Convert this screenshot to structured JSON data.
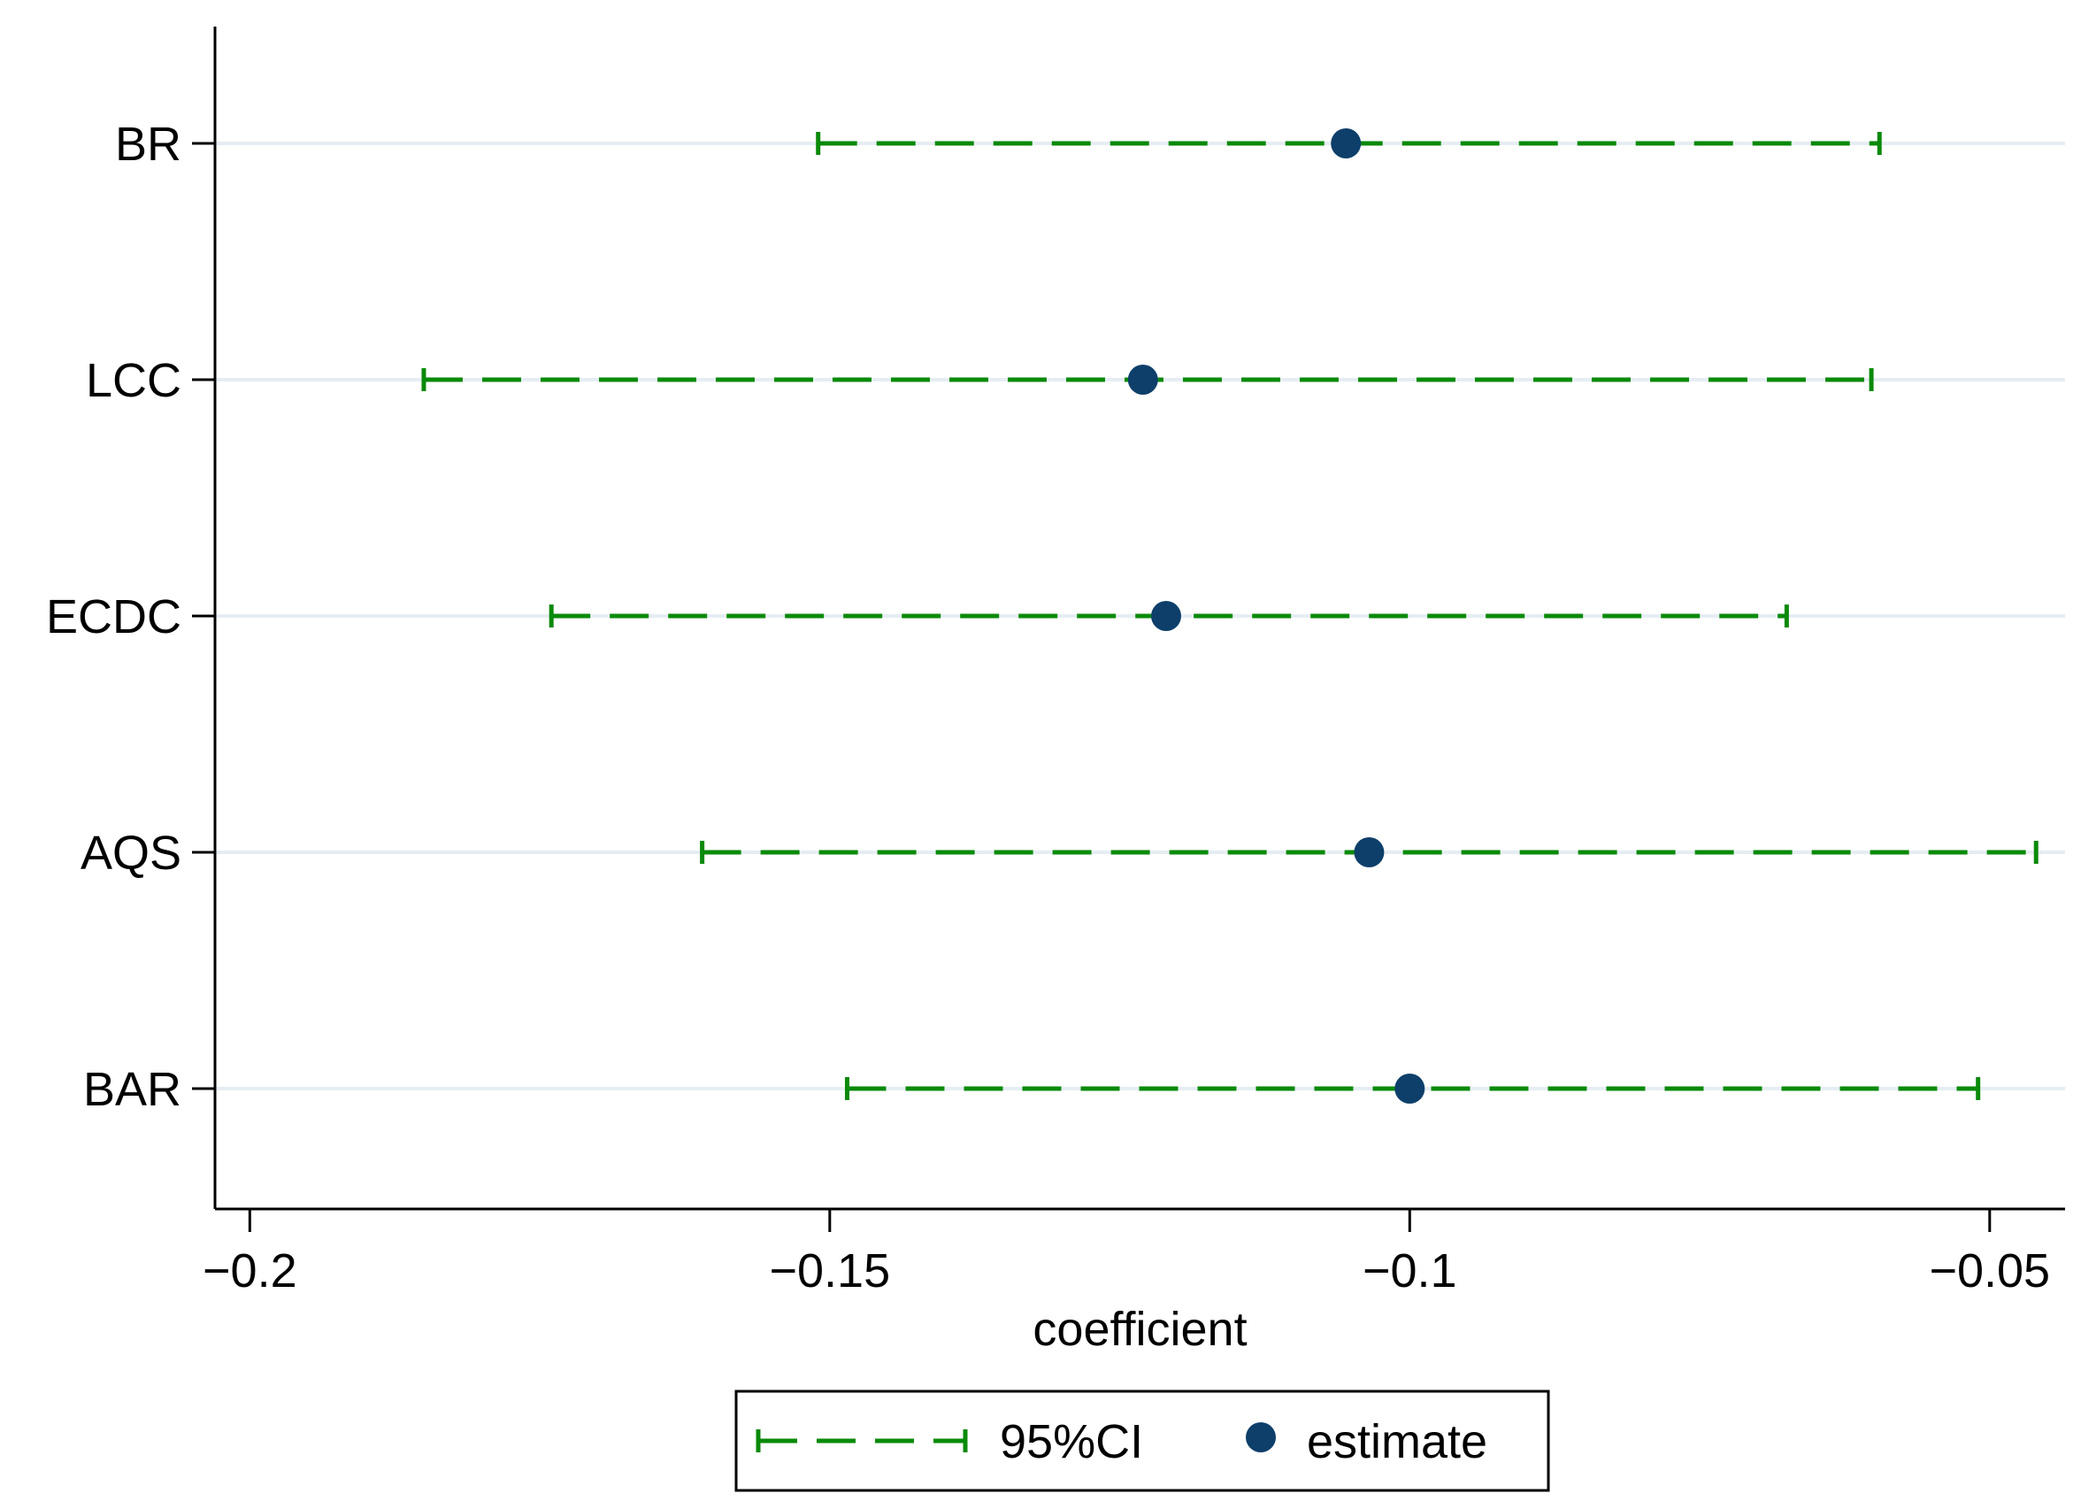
{
  "chart_data": {
    "type": "scatter",
    "subtype": "coefficient-plot",
    "title": "",
    "xlabel": "coefficient",
    "ylabel": "",
    "xlim": [
      -0.203,
      -0.0435
    ],
    "x_ticks": [
      -0.2,
      -0.15,
      -0.1,
      -0.05
    ],
    "x_tick_labels": [
      "−0.2",
      "−0.15",
      "−0.1",
      "−0.05"
    ],
    "categories": [
      "BR",
      "LCC",
      "ECDC",
      "AQS",
      "BAR"
    ],
    "series": [
      {
        "name": "estimate",
        "values": [
          -0.1055,
          -0.123,
          -0.121,
          -0.1035,
          -0.1
        ]
      },
      {
        "name": "95%CI",
        "lower": [
          -0.151,
          -0.185,
          -0.174,
          -0.161,
          -0.1485
        ],
        "upper": [
          -0.0595,
          -0.0602,
          -0.0675,
          -0.046,
          -0.051
        ]
      }
    ],
    "gridlines": "horizontal",
    "legend": {
      "position": "bottom",
      "entries": [
        "95%CI",
        "estimate"
      ]
    },
    "colors": {
      "ci": "#0a8a0a",
      "estimate": "#0d3f6a",
      "grid": "#e6edf3",
      "axis": "#000000"
    }
  }
}
